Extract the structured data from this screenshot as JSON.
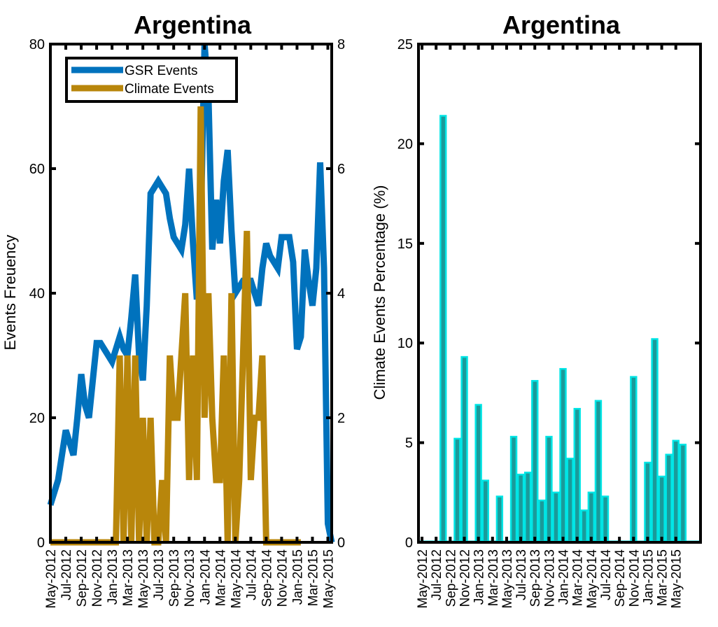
{
  "chart_data": [
    {
      "type": "line",
      "title": "Argentina",
      "ylabel": "Events Freuency",
      "y2label": "",
      "ylim": [
        0,
        80
      ],
      "y2lim": [
        0,
        8
      ],
      "yticks": [
        "0",
        "20",
        "40",
        "60",
        "80"
      ],
      "y2ticks": [
        "0",
        "2",
        "4",
        "6",
        "8"
      ],
      "xtick_labels": [
        "May-2012",
        "Jul-2012",
        "Sep-2012",
        "Nov-2012",
        "Jan-2013",
        "Mar-2013",
        "May-2013",
        "Jul-2013",
        "Sep-2013",
        "Nov-2013",
        "Jan-2014",
        "Mar-2014",
        "May-2014",
        "Jul-2014",
        "Sep-2014",
        "Nov-2014",
        "Jan-2015",
        "Mar-2015",
        "May-2015"
      ],
      "legend_position": "top-left",
      "grid": false,
      "series": [
        {
          "name": "GSR Events",
          "axis": "left",
          "color": "#0072bd",
          "x": [
            0,
            0.5,
            1,
            1.5,
            2,
            2.5,
            3,
            3.5,
            4,
            4.5,
            5,
            5.5,
            6,
            6.5,
            7,
            7.5,
            8,
            8.5,
            9,
            9.5,
            10,
            10.5,
            11,
            11.5,
            12,
            12.5,
            13,
            13.5,
            14,
            14.5,
            15,
            15.5,
            16,
            16.5,
            17,
            17.5,
            18,
            18.5,
            19,
            19.5,
            20,
            20.5,
            21,
            21.5,
            22,
            22.5,
            23,
            23.5,
            24,
            24.5,
            25,
            25.5,
            26,
            26.5,
            27,
            27.5,
            28,
            28.5,
            29,
            29.5,
            30,
            30.5,
            31,
            31.5,
            32,
            32.5,
            33,
            33.5,
            34,
            34.5,
            35,
            35.5,
            36,
            36.5
          ],
          "values": [
            6,
            8,
            10,
            14,
            18,
            16,
            14,
            20,
            27,
            22,
            20,
            26,
            32,
            32,
            31,
            30,
            29,
            31,
            33,
            31,
            30,
            36,
            43,
            30,
            26,
            38,
            56,
            57,
            58,
            57,
            56,
            52,
            49,
            48,
            47,
            51,
            60,
            48,
            39,
            50,
            80,
            72,
            47,
            55,
            48,
            58,
            63,
            50,
            40,
            41,
            42,
            42,
            42,
            40,
            38,
            44,
            48,
            46,
            45,
            44,
            49,
            49,
            49,
            45,
            31,
            33,
            47,
            42,
            38,
            44,
            61,
            44,
            3,
            0
          ]
        },
        {
          "name": "Climate Events",
          "axis": "right",
          "color": "#b8860b",
          "x": [
            0,
            1,
            2,
            3,
            4,
            5,
            6,
            7,
            8,
            8.5,
            9,
            9.5,
            10,
            10.5,
            11,
            11.5,
            12,
            12.5,
            13,
            13.5,
            14,
            14.5,
            15,
            15.5,
            16,
            16.5,
            17,
            17.5,
            18,
            18.5,
            19,
            19.5,
            20,
            20.5,
            21,
            21.5,
            22,
            22.5,
            23,
            23.5,
            24,
            24.5,
            25,
            25.5,
            26,
            26.5,
            27,
            27.5,
            28,
            28.5,
            29,
            29.5,
            30,
            30.5,
            31,
            31.5,
            32,
            32.5
          ],
          "values": [
            0,
            0,
            0,
            0,
            0,
            0,
            0,
            0,
            0,
            0,
            3,
            0,
            3,
            0,
            3,
            0,
            2,
            0,
            2,
            0,
            0,
            1,
            0,
            3,
            2,
            2,
            3,
            4,
            1,
            3,
            1,
            7,
            2,
            4,
            2,
            1,
            1,
            3,
            0,
            4,
            0,
            1,
            3,
            5,
            1,
            2,
            2,
            3,
            0,
            0,
            0,
            0,
            0,
            0,
            0,
            0,
            0,
            0
          ]
        }
      ]
    },
    {
      "type": "bar",
      "title": "Argentina",
      "ylabel": "Climate Events Percentage (%)",
      "ylim": [
        0,
        25
      ],
      "yticks": [
        "0",
        "5",
        "10",
        "15",
        "20",
        "25"
      ],
      "xtick_labels": [
        "May-2012",
        "Jul-2012",
        "Sep-2012",
        "Nov-2012",
        "Jan-2013",
        "Mar-2013",
        "May-2013",
        "Jul-2013",
        "Sep-2013",
        "Nov-2013",
        "Jan-2014",
        "Mar-2014",
        "May-2014",
        "Jul-2014",
        "Sep-2014",
        "Nov-2014",
        "Jan-2015",
        "Mar-2015",
        "May-2015"
      ],
      "bar_color": "#1a9a9a",
      "bar_edge_color": "#00e5e5",
      "grid": false,
      "values": [
        0,
        0,
        0,
        21.4,
        0,
        5.2,
        9.3,
        0,
        6.9,
        3.1,
        0,
        2.3,
        0,
        5.3,
        3.4,
        3.5,
        8.1,
        2.1,
        5.3,
        2.5,
        8.7,
        4.2,
        6.7,
        1.6,
        2.5,
        7.1,
        2.3,
        0,
        0,
        0,
        8.3,
        0,
        4.0,
        10.2,
        3.3,
        4.4,
        5.1,
        4.9,
        0,
        0
      ]
    }
  ]
}
